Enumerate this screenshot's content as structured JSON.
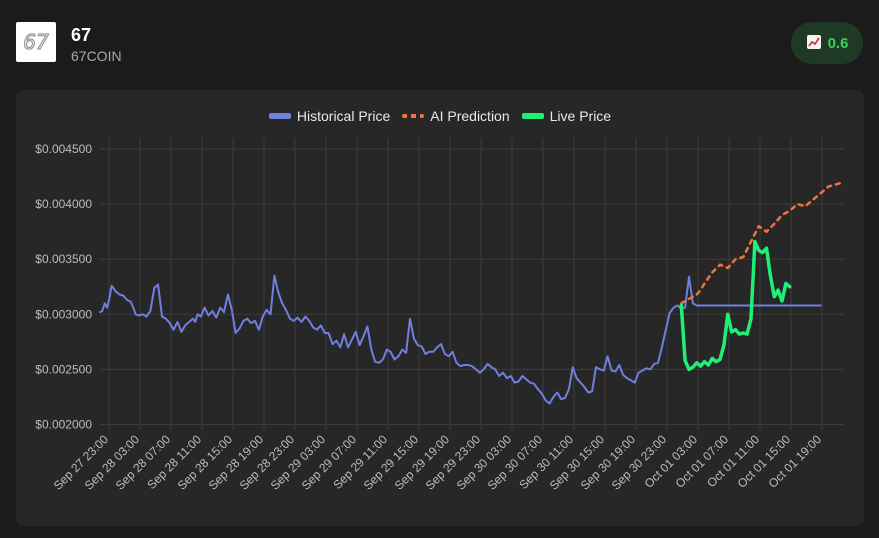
{
  "header": {
    "coin_name": "67",
    "coin_ticker": "67COIN",
    "badge_icon": "chart-up-icon",
    "badge_value": "0.6",
    "badge_color": "#3ecf5c"
  },
  "chart_data": {
    "type": "line",
    "title": "",
    "xlabel": "",
    "ylabel": "",
    "ylim": [
      0.00195,
      0.0046
    ],
    "y_ticks": [
      "$0.004500",
      "$0.004000",
      "$0.003500",
      "$0.003000",
      "$0.002500",
      "$0.002000"
    ],
    "y_tick_values": [
      0.0045,
      0.004,
      0.0035,
      0.003,
      0.0025,
      0.002
    ],
    "x_ticks": [
      "Sep 27 23:00",
      "Sep 28 03:00",
      "Sep 28 07:00",
      "Sep 28 11:00",
      "Sep 28 15:00",
      "Sep 28 19:00",
      "Sep 28 23:00",
      "Sep 29 03:00",
      "Sep 29 07:00",
      "Sep 29 11:00",
      "Sep 29 15:00",
      "Sep 29 19:00",
      "Sep 29 23:00",
      "Sep 30 03:00",
      "Sep 30 07:00",
      "Sep 30 11:00",
      "Sep 30 15:00",
      "Sep 30 19:00",
      "Sep 30 23:00",
      "Oct 01 03:00",
      "Oct 01 07:00",
      "Oct 01 11:00",
      "Oct 01 15:00",
      "Oct 01 19:00"
    ],
    "grid": true,
    "legend_position": "top",
    "series": [
      {
        "name": "Historical Price",
        "color": "#6f7fe0",
        "x": [
          0,
          0.3,
          0.6,
          0.9,
          1.2,
          1.5,
          2,
          2.5,
          3,
          3.5,
          3.8,
          4,
          4.3,
          4.6,
          5,
          5.5,
          6,
          6.5,
          7,
          7.5,
          8,
          8.5,
          9,
          9.5,
          10,
          10.5,
          11,
          11.5,
          12,
          12.3,
          12.6,
          13,
          13.5,
          14,
          14.5,
          15,
          15.5,
          16,
          16.5,
          17,
          17.5,
          18,
          18.5,
          19,
          19.5,
          20,
          20.5,
          21,
          21.5,
          22,
          22.5,
          23,
          23.5,
          24,
          24.5,
          25,
          25.5,
          26,
          26.5,
          27,
          27.5,
          28,
          28.5,
          29,
          29.5,
          30,
          30.5,
          31,
          31.5,
          32,
          32.5,
          33,
          33.5,
          34,
          34.5,
          35,
          35.5,
          36,
          36.5,
          37,
          37.5,
          38,
          38.5,
          39,
          39.5,
          40,
          40.5,
          41,
          41.5,
          42,
          42.5,
          43,
          43.5,
          44,
          44.5,
          45,
          45.5,
          46,
          46.5,
          47,
          47.5,
          48,
          48.5,
          49,
          49.5,
          50,
          50.5,
          51,
          51.5,
          52,
          52.5,
          53,
          53.5,
          54,
          54.5,
          55,
          55.5,
          56,
          56.5,
          57,
          57.5,
          58,
          58.5,
          59,
          59.5,
          60,
          60.5,
          61,
          61.5,
          62,
          62.5,
          63,
          63.5,
          64,
          64.5,
          65,
          65.5,
          66,
          66.5,
          67,
          67.5,
          68,
          68.5,
          69,
          69.5,
          70,
          70.5,
          71,
          71.5,
          72,
          72.5,
          73,
          73.5,
          74,
          74.5,
          75,
          75.5,
          76,
          76.5,
          77,
          77.5,
          78,
          78.5,
          79,
          79.5,
          80,
          80.5,
          81,
          81.5,
          82,
          82.5,
          83,
          83.5,
          84,
          84.5,
          85,
          85.5,
          86,
          86.5,
          87,
          87.5,
          88,
          88.5,
          89,
          89.5,
          90,
          90.5,
          91,
          91.5,
          92,
          92.5,
          93
        ],
        "values": [
          0.00302,
          0.00303,
          0.0031,
          0.00306,
          0.00314,
          0.00326,
          0.00321,
          0.00318,
          0.00317,
          0.00313,
          0.00312,
          0.00311,
          0.00306,
          0.003,
          0.00299,
          0.003,
          0.00298,
          0.00303,
          0.00324,
          0.00327,
          0.00298,
          0.00296,
          0.00292,
          0.00286,
          0.00293,
          0.00284,
          0.0029,
          0.00293,
          0.00296,
          0.00293,
          0.003,
          0.00298,
          0.00306,
          0.00299,
          0.00303,
          0.00297,
          0.00306,
          0.00302,
          0.00318,
          0.00304,
          0.00283,
          0.00287,
          0.00294,
          0.00296,
          0.00292,
          0.00294,
          0.00286,
          0.00298,
          0.00304,
          0.003,
          0.00335,
          0.0032,
          0.0031,
          0.00304,
          0.00296,
          0.00294,
          0.00297,
          0.00293,
          0.00298,
          0.00294,
          0.00288,
          0.00286,
          0.0029,
          0.00283,
          0.00283,
          0.00273,
          0.00276,
          0.0027,
          0.00282,
          0.0027,
          0.00277,
          0.00284,
          0.00272,
          0.0028,
          0.00289,
          0.00268,
          0.00257,
          0.00256,
          0.00259,
          0.00268,
          0.00266,
          0.00259,
          0.00262,
          0.00268,
          0.00265,
          0.00296,
          0.00278,
          0.00272,
          0.00271,
          0.00264,
          0.00266,
          0.00266,
          0.0027,
          0.00273,
          0.00264,
          0.00262,
          0.00266,
          0.00256,
          0.00253,
          0.00254,
          0.00254,
          0.00253,
          0.0025,
          0.00247,
          0.0025,
          0.00255,
          0.00252,
          0.0025,
          0.00244,
          0.00247,
          0.00242,
          0.00244,
          0.00238,
          0.00239,
          0.00244,
          0.00241,
          0.00238,
          0.00237,
          0.00232,
          0.00228,
          0.00222,
          0.00219,
          0.00225,
          0.00229,
          0.00223,
          0.00224,
          0.00232,
          0.00252,
          0.00242,
          0.00238,
          0.00234,
          0.00229,
          0.0023,
          0.00252,
          0.0025,
          0.00249,
          0.00262,
          0.00249,
          0.00248,
          0.00254,
          0.00245,
          0.00242,
          0.0024,
          0.00238,
          0.00247,
          0.00249,
          0.00251,
          0.0025,
          0.00255,
          0.00256,
          0.0027,
          0.00286,
          0.00301,
          0.00306,
          0.00308,
          0.00305,
          0.00306,
          0.00334,
          0.0031,
          0.00308,
          0.00308,
          0.00308,
          0.00308,
          0.00308,
          0.00308,
          0.00308,
          0.00308,
          0.00308,
          0.00308,
          0.00308,
          0.00308,
          0.00308,
          0.00308,
          0.00308,
          0.00308,
          0.00308,
          0.00308,
          0.00308,
          0.00308,
          0.00308,
          0.00308,
          0.00308,
          0.00308,
          0.00308,
          0.00308,
          0.00308,
          0.00308,
          0.00308,
          0.00308,
          0.00308,
          0.00308,
          0.00308
        ]
      },
      {
        "name": "AI Prediction",
        "color": "#f2733a",
        "dashed": true,
        "x": [
          75,
          76,
          77,
          77.5,
          78,
          79,
          80,
          81,
          82,
          83,
          84,
          85,
          86,
          87,
          87.5,
          88,
          89,
          90,
          91,
          92,
          93,
          94,
          95,
          96
        ],
        "values": [
          0.0031,
          0.00314,
          0.00318,
          0.00322,
          0.00328,
          0.00338,
          0.00345,
          0.00342,
          0.0035,
          0.00352,
          0.00366,
          0.0038,
          0.00375,
          0.00382,
          0.00386,
          0.0039,
          0.00394,
          0.004,
          0.00398,
          0.00404,
          0.0041,
          0.00416,
          0.00418,
          0.0042
        ]
      },
      {
        "name": "Live Price",
        "color": "#1ef076",
        "x": [
          75,
          75.5,
          76,
          76.5,
          77,
          77.5,
          78,
          78.5,
          79,
          79.5,
          80,
          80.5,
          81,
          81.5,
          82,
          82.5,
          83,
          83.5,
          84,
          84.5,
          85,
          85.5,
          86,
          86.5,
          87,
          87.5,
          88,
          88.5,
          89
        ],
        "values": [
          0.00308,
          0.00258,
          0.0025,
          0.00252,
          0.00256,
          0.00253,
          0.00257,
          0.00254,
          0.0026,
          0.00257,
          0.00259,
          0.00272,
          0.003,
          0.00284,
          0.00286,
          0.00282,
          0.00283,
          0.00282,
          0.00296,
          0.00366,
          0.00358,
          0.00356,
          0.0036,
          0.00335,
          0.00316,
          0.00322,
          0.00312,
          0.00328,
          0.00325
        ]
      }
    ]
  }
}
